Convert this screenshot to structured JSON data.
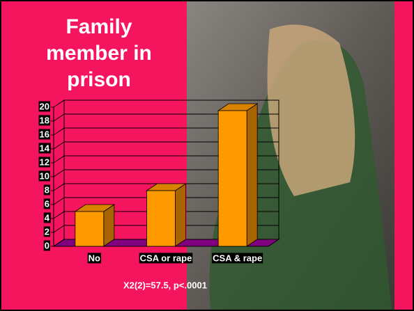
{
  "chart_data": {
    "type": "bar",
    "title": "Family member in prison",
    "categories": [
      "No",
      "CSA or rape",
      "CSA & rape"
    ],
    "values": [
      5,
      8,
      19.5
    ],
    "color": "#ff9900",
    "ylim": [
      0,
      20
    ],
    "yticks": [
      0,
      2,
      4,
      6,
      8,
      10,
      12,
      14,
      16,
      18,
      20
    ],
    "grid": true,
    "annotation": "X2(2)=57.5, p<.0001"
  }
}
